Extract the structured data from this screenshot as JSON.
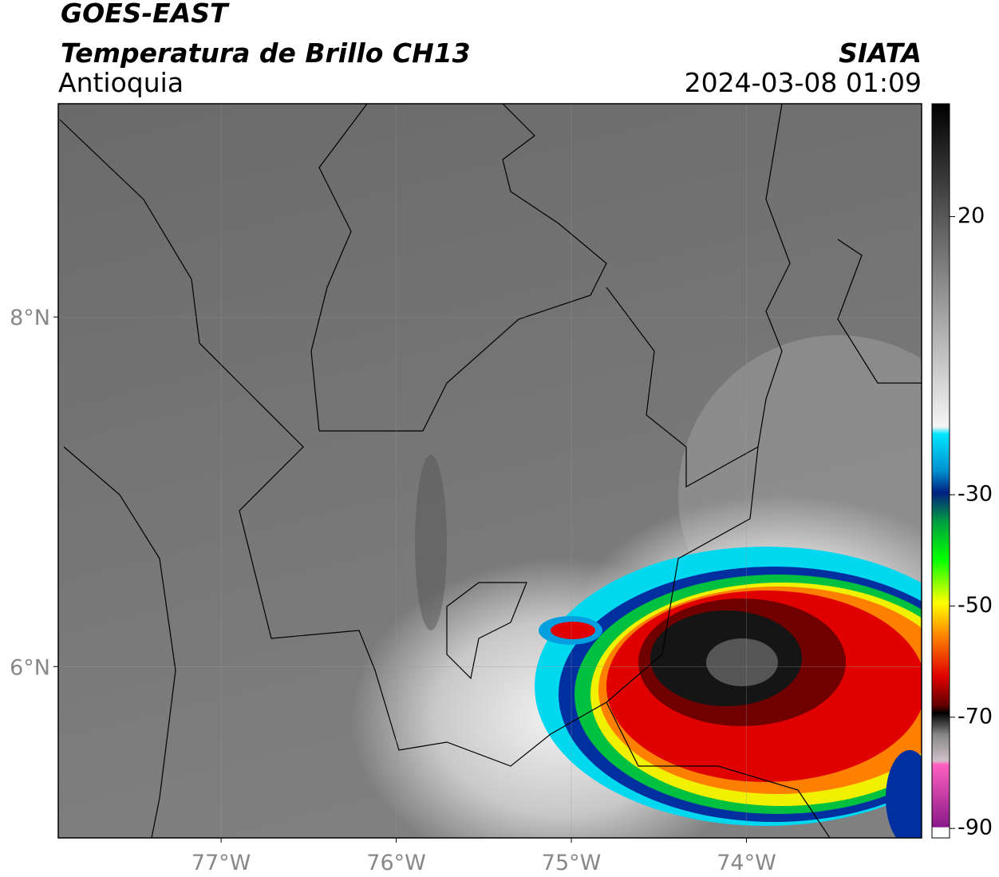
{
  "header": {
    "title": "GOES-EAST",
    "subtitle": "Temperatura de Brillo CH13",
    "region": "Antioquia",
    "source": "SIATA",
    "datetime": "2024-03-08 01:09"
  },
  "map": {
    "xlim": [
      -77.93,
      -73.0
    ],
    "ylim": [
      5.02,
      9.22
    ],
    "xticks": [
      {
        "value": -77,
        "label": "77°W"
      },
      {
        "value": -76,
        "label": "76°W"
      },
      {
        "value": -75,
        "label": "75°W"
      },
      {
        "value": -74,
        "label": "74°W"
      }
    ],
    "yticks": [
      {
        "value": 8,
        "label": "8°N"
      },
      {
        "value": 6,
        "label": "6°N"
      }
    ]
  },
  "colorbar": {
    "lim": [
      -91.7,
      40.3
    ],
    "ticks": [
      20,
      -30,
      -50,
      -70,
      -90
    ]
  }
}
